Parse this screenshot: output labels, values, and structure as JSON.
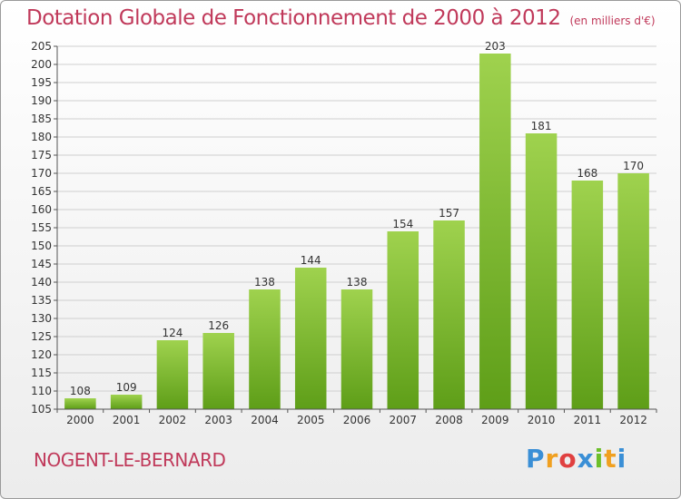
{
  "title": "Dotation Globale de Fonctionnement de 2000 à 2012",
  "unit": "(en milliers d'€)",
  "commune": "NOGENT-LE-BERNARD",
  "logo": {
    "text": "Proxiti",
    "colors": [
      "#3a8fd6",
      "#f0a020",
      "#e04040",
      "#3a8fd6",
      "#6cbf2a",
      "#f0a020",
      "#3a8fd6"
    ]
  },
  "chart_data": {
    "type": "bar",
    "title": "Dotation Globale de Fonctionnement de 2000 à 2012",
    "categories": [
      "2000",
      "2001",
      "2002",
      "2003",
      "2004",
      "2005",
      "2006",
      "2007",
      "2008",
      "2009",
      "2010",
      "2011",
      "2012"
    ],
    "values": [
      108,
      109,
      124,
      126,
      138,
      144,
      138,
      154,
      157,
      203,
      181,
      168,
      170
    ],
    "ylim": [
      105,
      205
    ],
    "yticks": [
      105,
      110,
      115,
      120,
      125,
      130,
      135,
      140,
      145,
      150,
      155,
      160,
      165,
      170,
      175,
      180,
      185,
      190,
      195,
      200,
      205
    ],
    "grid": true,
    "bar_color": "#7fbf3a",
    "xlabel": "",
    "ylabel": ""
  }
}
